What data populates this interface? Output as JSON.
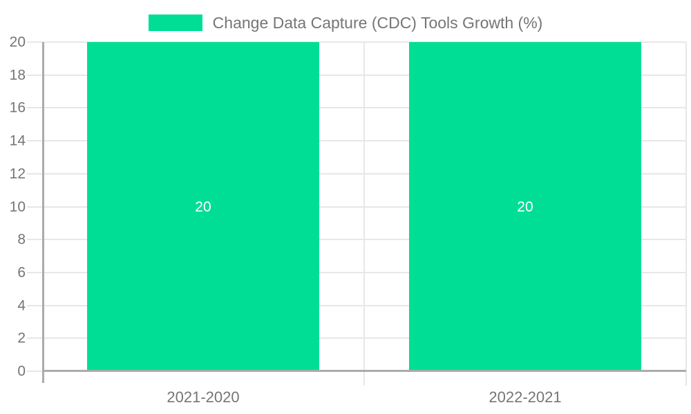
{
  "chart_data": {
    "type": "bar",
    "title": "Change Data Capture (CDC) Tools Growth (%)",
    "categories": [
      "2021-2020",
      "2022-2021"
    ],
    "series": [
      {
        "name": "Change Data Capture (CDC) Tools Growth (%)",
        "values": [
          20,
          20
        ]
      }
    ],
    "value_labels": [
      "20",
      "20"
    ],
    "xlabel": "",
    "ylabel": "",
    "ylim": [
      0,
      20
    ],
    "yticks": [
      0,
      2,
      4,
      6,
      8,
      10,
      12,
      14,
      16,
      18,
      20
    ],
    "grid": true,
    "legend_position": "top",
    "colors": {
      "bar": "#00de96",
      "gridline": "#e7e7e7",
      "axis_line": "#ababab",
      "tick_label": "#757575",
      "legend_text": "#757575",
      "bar_value_label": "#ffffff",
      "background": "#ffffff"
    }
  }
}
